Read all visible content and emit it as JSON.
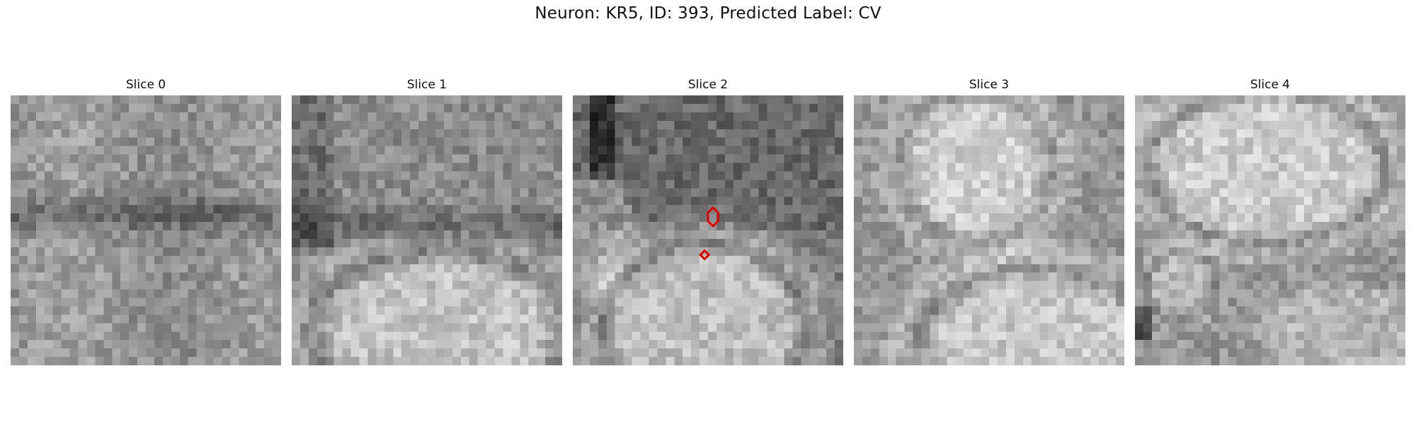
{
  "figure": {
    "title": "Neuron: KR5, ID: 393, Predicted Label: CV"
  },
  "panels": [
    {
      "title": "Slice 0",
      "markers": []
    },
    {
      "title": "Slice 1",
      "markers": []
    },
    {
      "title": "Slice 2",
      "markers": [
        "red-outline-upper",
        "red-outline-lower"
      ]
    },
    {
      "title": "Slice 3",
      "markers": []
    },
    {
      "title": "Slice 4",
      "markers": []
    }
  ],
  "colors": {
    "marker": "#e00000",
    "image_palette": "grayscale"
  }
}
